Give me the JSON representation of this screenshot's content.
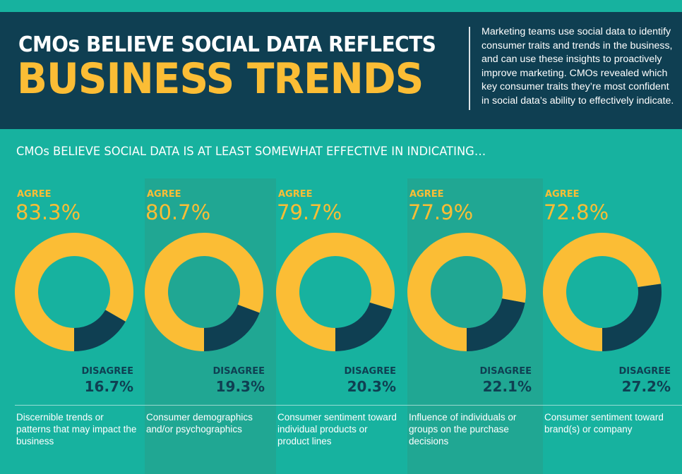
{
  "header": {
    "title_line1": "CMOs BELIEVE SOCIAL DATA REFLECTS",
    "title_line2": "BUSINESS TRENDS",
    "intro": "Marketing teams use social data to identify consumer traits and trends in the business, and can use these insights to proactively improve marketing. CMOs revealed which key consumer traits they’re most confident in social data’s ability to effectively indicate."
  },
  "colors": {
    "agree": "#fbbd35",
    "disagree": "#0f3f52",
    "background": "#17b29f",
    "header": "#0f3f52"
  },
  "chart_data": {
    "type": "pie",
    "title": "CMOs BELIEVE SOCIAL DATA IS AT LEAST SOMEWHAT EFFECTIVE IN INDICATING…",
    "agree_label": "AGREE",
    "disagree_label": "DISAGREE",
    "categories": [
      "Discernible trends or patterns that may impact the business",
      "Consumer demographics and/or psychographics",
      "Consumer sentiment toward individual products or product lines",
      "Influence of individuals or groups on the purchase decisions",
      "Consumer sentiment toward brand(s) or company"
    ],
    "series": [
      {
        "name": "AGREE",
        "values": [
          83.3,
          80.7,
          79.7,
          77.9,
          72.8
        ]
      },
      {
        "name": "DISAGREE",
        "values": [
          16.7,
          19.3,
          20.3,
          22.1,
          27.2
        ]
      }
    ],
    "agree_text": [
      "83.3%",
      "80.7%",
      "79.7%",
      "77.9%",
      "72.8%"
    ],
    "disagree_text": [
      "16.7%",
      "19.3%",
      "20.3%",
      "22.1%",
      "27.2%"
    ]
  }
}
